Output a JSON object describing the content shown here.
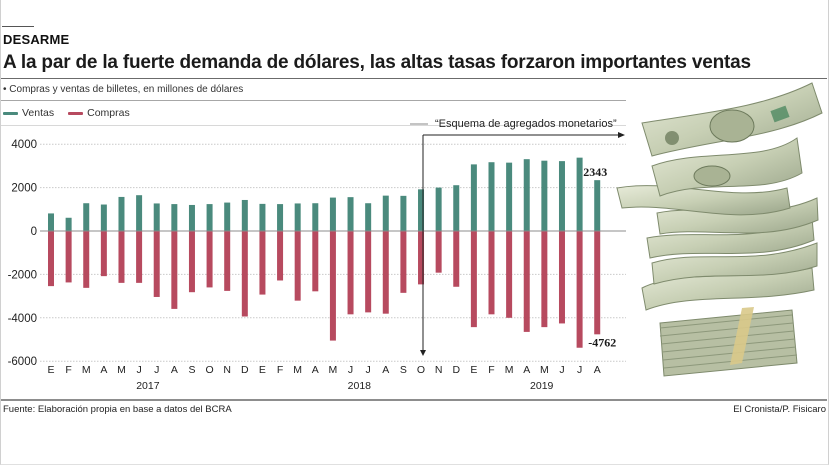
{
  "header": {
    "kicker": "DESARME",
    "title": "A la par de la fuerte demanda de dólares, las altas tasas forzaron importantes ventas",
    "subtitle": "• Compras y ventas de billetes, en millones de dólares"
  },
  "legend": [
    {
      "name": "Ventas",
      "color": "#4a8a7d"
    },
    {
      "name": "Compras",
      "color": "#b74a5f"
    }
  ],
  "footer": {
    "source": "Fuente: Elaboración propia en base a datos del BCRA",
    "credit": "El Cronista/P. Fisicaro"
  },
  "illustration": {
    "subject": "stack-of-dollar-bills"
  },
  "chart_data": {
    "type": "bar",
    "title": "A la par de la fuerte demanda de dólares, las altas tasas forzaron importantes ventas",
    "subtitle": "Compras y ventas de billetes, en millones de dólares",
    "xlabel": "",
    "ylabel": "",
    "ylim": [
      -6000,
      4000
    ],
    "yticks": [
      4000,
      2000,
      0,
      -2000,
      -4000,
      -6000
    ],
    "grid": true,
    "legend_position": "top-left",
    "categories": [
      "E",
      "F",
      "M",
      "A",
      "M",
      "J",
      "J",
      "A",
      "S",
      "O",
      "N",
      "D",
      "E",
      "F",
      "M",
      "A",
      "M",
      "J",
      "J",
      "A",
      "S",
      "O",
      "N",
      "D",
      "E",
      "F",
      "M",
      "A",
      "M",
      "J",
      "J",
      "A"
    ],
    "years": [
      {
        "label": "2017",
        "start_index": 0,
        "end_index": 11
      },
      {
        "label": "2018",
        "start_index": 12,
        "end_index": 23
      },
      {
        "label": "2019",
        "start_index": 24,
        "end_index": 31
      }
    ],
    "series": [
      {
        "name": "Ventas",
        "color": "#4a8a7d",
        "values": [
          810,
          610,
          1280,
          1220,
          1570,
          1650,
          1270,
          1240,
          1200,
          1240,
          1310,
          1430,
          1250,
          1240,
          1270,
          1280,
          1540,
          1560,
          1280,
          1630,
          1620,
          1920,
          2000,
          2110,
          3070,
          3170,
          3150,
          3310,
          3240,
          3220,
          3380,
          2343
        ]
      },
      {
        "name": "Compras",
        "color": "#b74a5f",
        "values": [
          -2540,
          -2370,
          -2620,
          -2080,
          -2390,
          -2390,
          -3040,
          -3590,
          -2820,
          -2600,
          -2760,
          -3940,
          -2930,
          -2280,
          -3210,
          -2780,
          -5050,
          -3840,
          -3750,
          -3810,
          -2850,
          -2460,
          -1920,
          -2570,
          -4430,
          -3840,
          -4000,
          -4650,
          -4430,
          -4260,
          -5380,
          -4762
        ]
      }
    ],
    "data_labels": [
      {
        "series": "Ventas",
        "index": 31,
        "text": "2343"
      },
      {
        "series": "Compras",
        "index": 31,
        "text": "-4762"
      }
    ],
    "annotation": {
      "text": "“Esquema de agregados monetarios”",
      "from_index": 21
    }
  }
}
